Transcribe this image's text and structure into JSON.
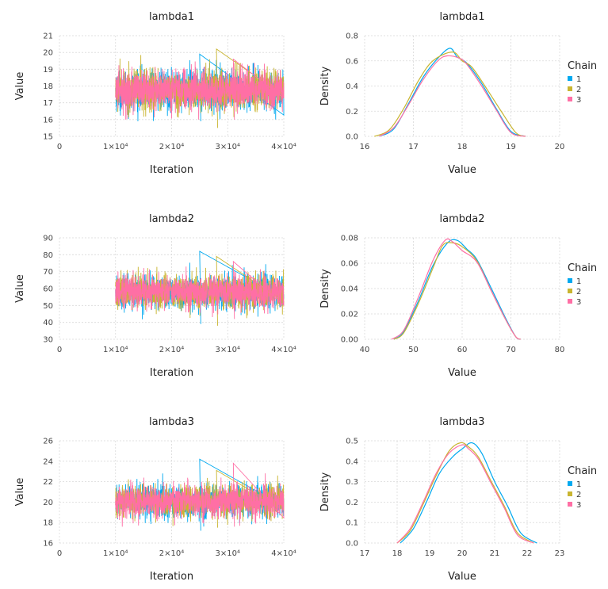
{
  "legend": {
    "title": "Chain",
    "chains": [
      {
        "label": "1",
        "color": "#00A9F0"
      },
      {
        "label": "2",
        "color": "#C9B530"
      },
      {
        "label": "3",
        "color": "#FF6FA5"
      }
    ]
  },
  "chart_data": [
    {
      "id": "trace-lambda1",
      "type": "line",
      "title": "lambda1",
      "xlabel": "Iteration",
      "ylabel": "Value",
      "xlim": [
        0,
        40000
      ],
      "ylim": [
        15,
        21
      ],
      "xticks": [
        0,
        10000,
        20000,
        30000,
        40000
      ],
      "xtick_labels": [
        "0",
        "1×10⁴",
        "2×10⁴",
        "3×10⁴",
        "4×10⁴"
      ],
      "yticks": [
        15,
        16,
        17,
        18,
        19,
        20,
        21
      ],
      "ytick_labels": [
        "15",
        "16",
        "17",
        "18",
        "19",
        "20",
        "21"
      ],
      "iterations": [
        10000,
        40000
      ],
      "series": [
        {
          "name": "1",
          "mean": 17.75,
          "sd": 0.6,
          "min": 15.9,
          "max": 19.9
        },
        {
          "name": "2",
          "mean": 17.75,
          "sd": 0.6,
          "min": 15.5,
          "max": 20.2
        },
        {
          "name": "3",
          "mean": 17.75,
          "sd": 0.6,
          "min": 16.0,
          "max": 19.6
        }
      ]
    },
    {
      "id": "density-lambda1",
      "type": "line",
      "title": "lambda1",
      "xlabel": "Value",
      "ylabel": "Density",
      "xlim": [
        16,
        20
      ],
      "ylim": [
        0,
        0.8
      ],
      "xticks": [
        16,
        17,
        18,
        19,
        20
      ],
      "xtick_labels": [
        "16",
        "17",
        "18",
        "19",
        "20"
      ],
      "yticks": [
        0,
        0.2,
        0.4,
        0.6,
        0.8
      ],
      "ytick_labels": [
        "0.0",
        "0.2",
        "0.4",
        "0.6",
        "0.8"
      ],
      "series": [
        {
          "name": "1",
          "x": [
            16.3,
            16.6,
            16.9,
            17.2,
            17.5,
            17.75,
            17.9,
            18.1,
            18.4,
            18.7,
            19.0,
            19.3
          ],
          "y": [
            0,
            0.06,
            0.26,
            0.47,
            0.62,
            0.7,
            0.63,
            0.58,
            0.42,
            0.22,
            0.04,
            0
          ]
        },
        {
          "name": "2",
          "x": [
            16.2,
            16.5,
            16.8,
            17.1,
            17.4,
            17.8,
            18.0,
            18.2,
            18.5,
            18.8,
            19.1,
            19.3
          ],
          "y": [
            0,
            0.05,
            0.22,
            0.44,
            0.6,
            0.67,
            0.6,
            0.55,
            0.38,
            0.2,
            0.03,
            0
          ]
        },
        {
          "name": "3",
          "x": [
            16.3,
            16.6,
            16.9,
            17.2,
            17.5,
            17.7,
            17.95,
            18.1,
            18.4,
            18.7,
            19.0,
            19.3
          ],
          "y": [
            0,
            0.07,
            0.25,
            0.45,
            0.6,
            0.64,
            0.62,
            0.57,
            0.4,
            0.21,
            0.03,
            0
          ]
        }
      ]
    },
    {
      "id": "trace-lambda2",
      "type": "line",
      "title": "lambda2",
      "xlabel": "Iteration",
      "ylabel": "Value",
      "xlim": [
        0,
        40000
      ],
      "ylim": [
        30,
        90
      ],
      "xticks": [
        0,
        10000,
        20000,
        30000,
        40000
      ],
      "xtick_labels": [
        "0",
        "1×10⁴",
        "2×10⁴",
        "3×10⁴",
        "4×10⁴"
      ],
      "yticks": [
        30,
        40,
        50,
        60,
        70,
        80,
        90
      ],
      "ytick_labels": [
        "30",
        "40",
        "50",
        "60",
        "70",
        "80",
        "90"
      ],
      "iterations": [
        10000,
        40000
      ],
      "series": [
        {
          "name": "1",
          "mean": 58,
          "sd": 5,
          "min": 39,
          "max": 82
        },
        {
          "name": "2",
          "mean": 58,
          "sd": 5,
          "min": 38,
          "max": 79
        },
        {
          "name": "3",
          "mean": 58,
          "sd": 5,
          "min": 42,
          "max": 76
        }
      ]
    },
    {
      "id": "density-lambda2",
      "type": "line",
      "title": "lambda2",
      "xlabel": "Value",
      "ylabel": "Density",
      "xlim": [
        40,
        80
      ],
      "ylim": [
        0,
        0.08
      ],
      "xticks": [
        40,
        50,
        60,
        70,
        80
      ],
      "xtick_labels": [
        "40",
        "50",
        "60",
        "70",
        "80"
      ],
      "yticks": [
        0,
        0.02,
        0.04,
        0.06,
        0.08
      ],
      "ytick_labels": [
        "0.00",
        "0.02",
        "0.04",
        "0.06",
        "0.08"
      ],
      "series": [
        {
          "name": "1",
          "x": [
            46,
            48,
            51,
            54,
            57,
            59,
            61,
            63,
            66,
            69,
            71,
            72
          ],
          "y": [
            0,
            0.006,
            0.03,
            0.058,
            0.076,
            0.078,
            0.071,
            0.063,
            0.04,
            0.016,
            0.002,
            0
          ]
        },
        {
          "name": "2",
          "x": [
            46,
            48,
            51,
            54,
            56,
            58,
            60,
            63,
            66,
            69,
            71,
            72
          ],
          "y": [
            0,
            0.005,
            0.028,
            0.056,
            0.074,
            0.076,
            0.073,
            0.062,
            0.038,
            0.015,
            0.002,
            0
          ]
        },
        {
          "name": "3",
          "x": [
            45.5,
            48,
            51,
            54,
            56.5,
            58,
            60,
            63,
            66,
            69,
            71,
            72
          ],
          "y": [
            0,
            0.007,
            0.033,
            0.062,
            0.078,
            0.077,
            0.07,
            0.061,
            0.038,
            0.015,
            0.002,
            0
          ]
        }
      ]
    },
    {
      "id": "trace-lambda3",
      "type": "line",
      "title": "lambda3",
      "xlabel": "Iteration",
      "ylabel": "Value",
      "xlim": [
        0,
        40000
      ],
      "ylim": [
        16,
        26
      ],
      "xticks": [
        0,
        10000,
        20000,
        30000,
        40000
      ],
      "xtick_labels": [
        "0",
        "1×10⁴",
        "2×10⁴",
        "3×10⁴",
        "4×10⁴"
      ],
      "yticks": [
        16,
        18,
        20,
        22,
        24,
        26
      ],
      "ytick_labels": [
        "16",
        "18",
        "20",
        "22",
        "24",
        "26"
      ],
      "iterations": [
        10000,
        40000
      ],
      "series": [
        {
          "name": "1",
          "mean": 20.1,
          "sd": 0.8,
          "min": 17.2,
          "max": 24.2
        },
        {
          "name": "2",
          "mean": 20.1,
          "sd": 0.8,
          "min": 17.5,
          "max": 23.1
        },
        {
          "name": "3",
          "mean": 20.1,
          "sd": 0.8,
          "min": 17.6,
          "max": 23.8
        }
      ]
    },
    {
      "id": "density-lambda3",
      "type": "line",
      "title": "lambda3",
      "xlabel": "Value",
      "ylabel": "Density",
      "xlim": [
        17,
        23
      ],
      "ylim": [
        0,
        0.5
      ],
      "xticks": [
        17,
        18,
        19,
        20,
        21,
        22,
        23
      ],
      "xtick_labels": [
        "17",
        "18",
        "19",
        "20",
        "21",
        "22",
        "23"
      ],
      "yticks": [
        0,
        0.1,
        0.2,
        0.3,
        0.4,
        0.5
      ],
      "ytick_labels": [
        "0.0",
        "0.1",
        "0.2",
        "0.3",
        "0.4",
        "0.5"
      ],
      "series": [
        {
          "name": "1",
          "x": [
            18.1,
            18.5,
            18.9,
            19.3,
            19.7,
            20.0,
            20.3,
            20.6,
            21.0,
            21.4,
            21.8,
            22.3
          ],
          "y": [
            0,
            0.07,
            0.2,
            0.34,
            0.42,
            0.46,
            0.49,
            0.44,
            0.3,
            0.18,
            0.05,
            0
          ]
        },
        {
          "name": "2",
          "x": [
            18.0,
            18.4,
            18.8,
            19.2,
            19.6,
            19.95,
            20.2,
            20.5,
            20.9,
            21.3,
            21.7,
            22.2
          ],
          "y": [
            0,
            0.06,
            0.19,
            0.33,
            0.45,
            0.49,
            0.47,
            0.42,
            0.3,
            0.18,
            0.05,
            0
          ]
        },
        {
          "name": "3",
          "x": [
            18.0,
            18.4,
            18.8,
            19.2,
            19.6,
            20.0,
            20.2,
            20.5,
            20.9,
            21.3,
            21.7,
            22.2
          ],
          "y": [
            0,
            0.07,
            0.2,
            0.34,
            0.44,
            0.48,
            0.46,
            0.41,
            0.29,
            0.17,
            0.04,
            0
          ]
        }
      ]
    }
  ]
}
